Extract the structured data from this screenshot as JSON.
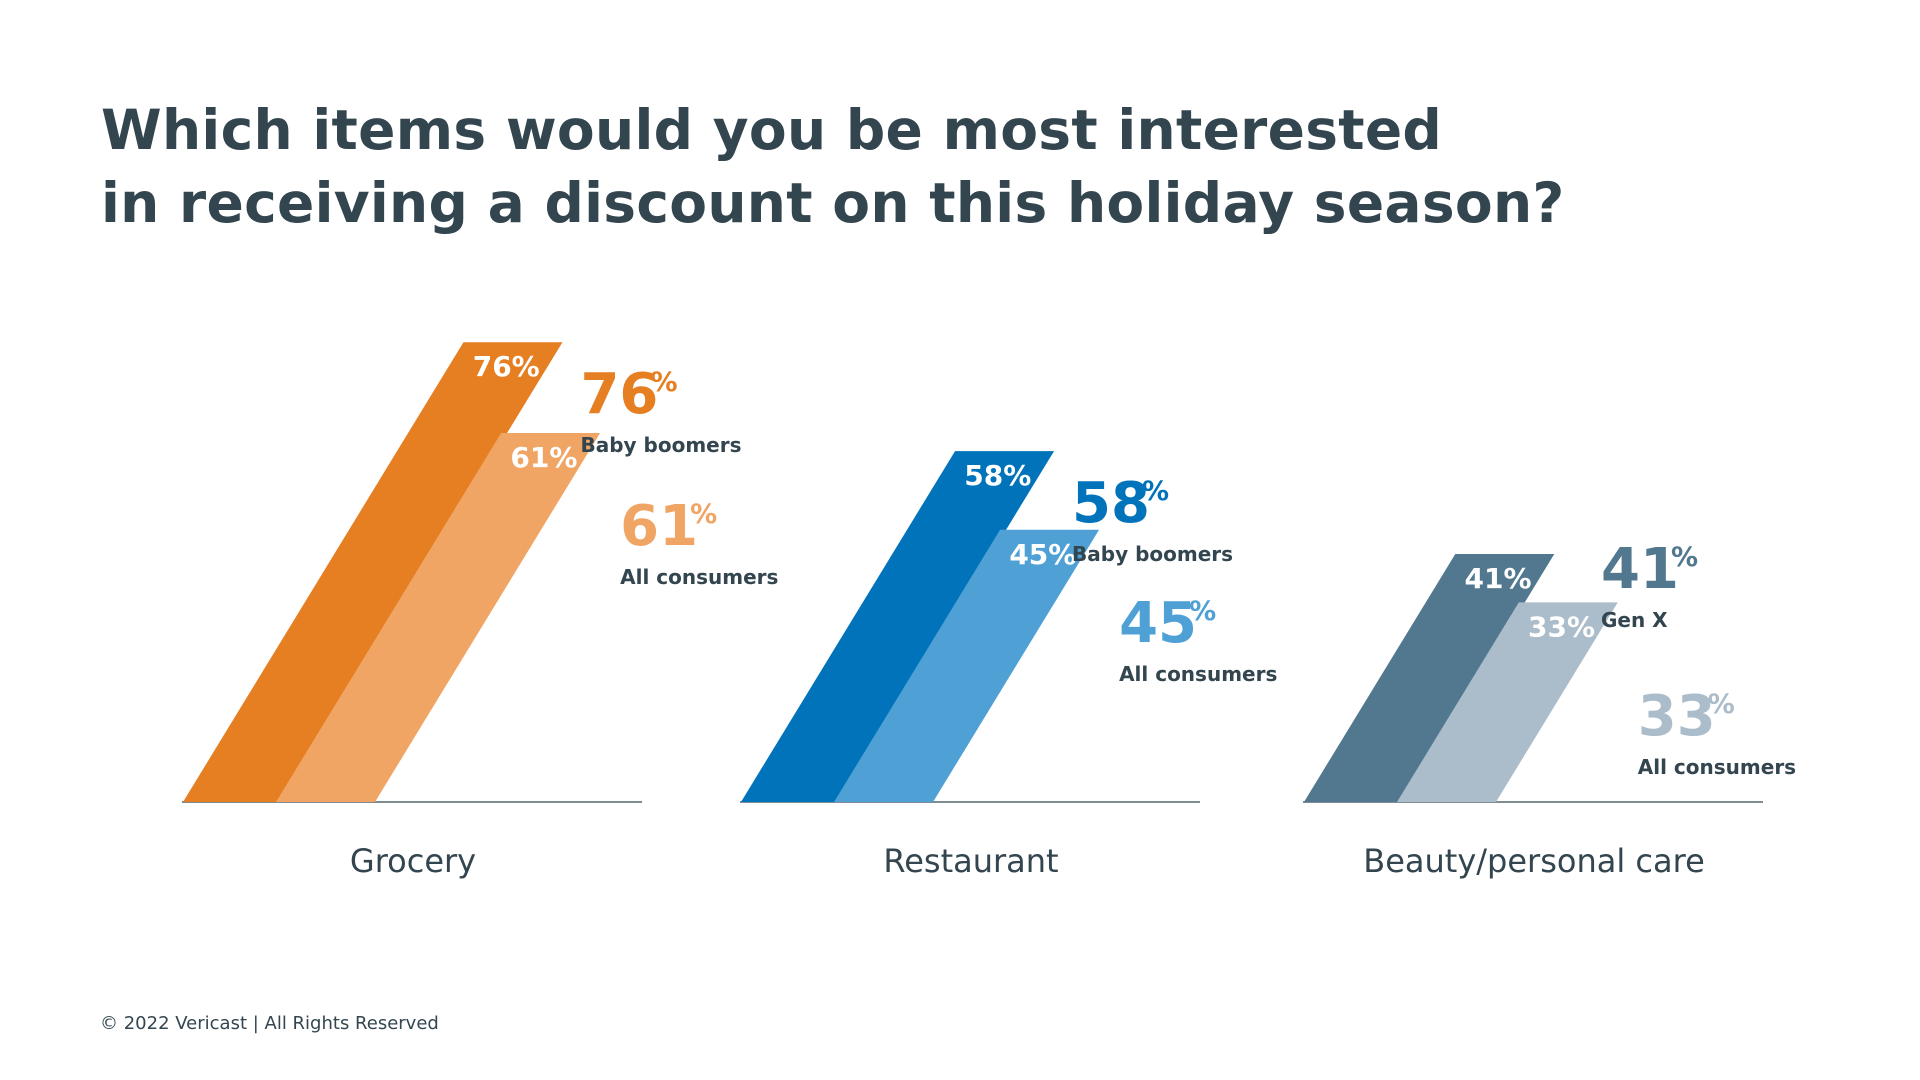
{
  "title_lines": [
    "Which items would you be most interested",
    "in receiving a discount on this holiday season?"
  ],
  "footer": "© 2022 Vericast | All Rights Reserved",
  "chart_data": {
    "type": "bar",
    "title": "Which items would you be most interested in receiving a discount on this holiday season?",
    "unit": "%",
    "ylim": [
      0,
      76
    ],
    "grid": false,
    "categories": [
      "Grocery",
      "Restaurant",
      "Beauty/personal care"
    ],
    "groups": [
      {
        "category": "Grocery",
        "primary_color": "#e67e22",
        "secondary_color": "#f0a565",
        "bars": [
          {
            "name": "Baby boomers",
            "value": 76,
            "label": "76%"
          },
          {
            "name": "All consumers",
            "value": 61,
            "label": "61%"
          }
        ]
      },
      {
        "category": "Restaurant",
        "primary_color": "#0073bb",
        "secondary_color": "#4fa0d5",
        "bars": [
          {
            "name": "Baby boomers",
            "value": 58,
            "label": "58%"
          },
          {
            "name": "All consumers",
            "value": 45,
            "label": "45%"
          }
        ]
      },
      {
        "category": "Beauty/personal care",
        "primary_color": "#52788f",
        "secondary_color": "#abbcca",
        "bars": [
          {
            "name": "Gen X",
            "value": 41,
            "label": "41%"
          },
          {
            "name": "All consumers",
            "value": 33,
            "label": "33%"
          }
        ]
      }
    ]
  }
}
